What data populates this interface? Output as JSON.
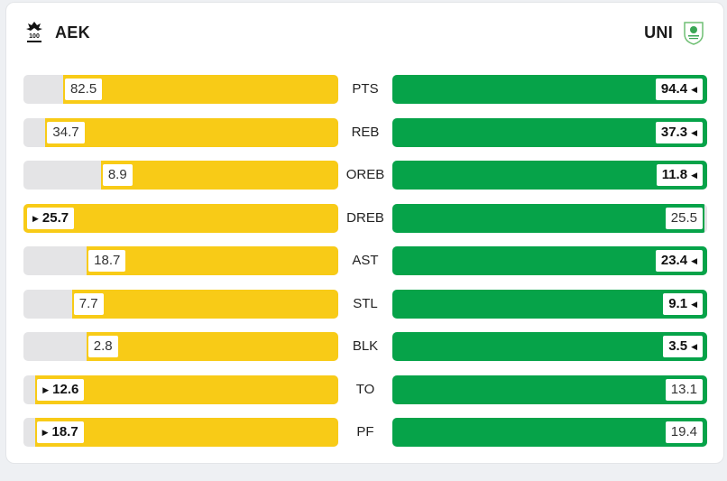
{
  "home": {
    "name": "AEK",
    "logo_icon": "aek-crest-icon",
    "color": "#f8cb17"
  },
  "away": {
    "name": "UNI",
    "logo_icon": "uni-shield-icon",
    "color": "#06a349"
  },
  "stats": [
    {
      "label": "PTS",
      "home": "82.5",
      "away": "94.4",
      "home_frac": 0.874,
      "away_frac": 1.0,
      "leader": "away"
    },
    {
      "label": "REB",
      "home": "34.7",
      "away": "37.3",
      "home_frac": 0.93,
      "away_frac": 1.0,
      "leader": "away"
    },
    {
      "label": "OREB",
      "home": "8.9",
      "away": "11.8",
      "home_frac": 0.754,
      "away_frac": 1.0,
      "leader": "away"
    },
    {
      "label": "DREB",
      "home": "25.7",
      "away": "25.5",
      "home_frac": 1.0,
      "away_frac": 0.992,
      "leader": "home"
    },
    {
      "label": "AST",
      "home": "18.7",
      "away": "23.4",
      "home_frac": 0.799,
      "away_frac": 1.0,
      "leader": "away"
    },
    {
      "label": "STL",
      "home": "7.7",
      "away": "9.1",
      "home_frac": 0.846,
      "away_frac": 1.0,
      "leader": "away"
    },
    {
      "label": "BLK",
      "home": "2.8",
      "away": "3.5",
      "home_frac": 0.8,
      "away_frac": 1.0,
      "leader": "away"
    },
    {
      "label": "TO",
      "home": "12.6",
      "away": "13.1",
      "home_frac": 0.962,
      "away_frac": 1.0,
      "leader": "home"
    },
    {
      "label": "PF",
      "home": "18.7",
      "away": "19.4",
      "home_frac": 0.964,
      "away_frac": 1.0,
      "leader": "home"
    }
  ]
}
